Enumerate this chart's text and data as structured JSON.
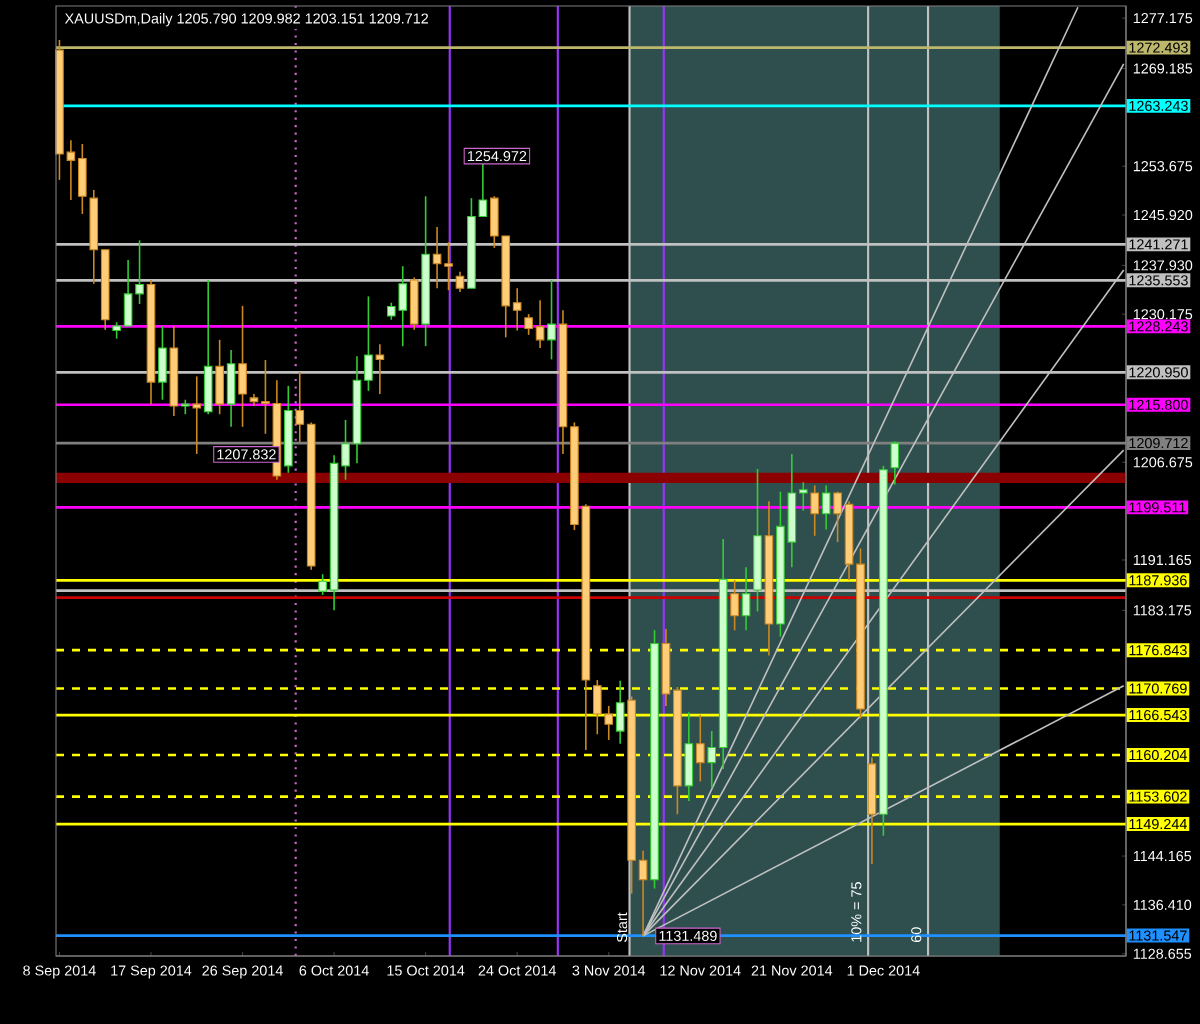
{
  "chart_data": {
    "type": "candlestick",
    "title": "XAUUSDm,Daily  1205.790 1209.982 1203.151 1209.712",
    "categories": [
      "8 Sep 2014",
      null,
      null,
      null,
      null,
      null,
      null,
      null,
      "17 Sep 2014",
      null,
      null,
      null,
      null,
      null,
      null,
      null,
      "26 Sep 2014",
      null,
      null,
      null,
      null,
      null,
      null,
      null,
      "6 Oct 2014",
      null,
      null,
      null,
      null,
      null,
      null,
      null,
      "15 Oct 2014",
      null,
      null,
      null,
      null,
      null,
      null,
      null,
      "24 Oct 2014",
      null,
      null,
      null,
      null,
      null,
      null,
      null,
      "3 Nov 2014",
      null,
      null,
      null,
      null,
      null,
      null,
      null,
      "12 Nov 2014",
      null,
      null,
      null,
      null,
      null,
      null,
      null,
      "21 Nov 2014",
      null,
      null,
      null,
      null,
      null,
      null,
      null,
      "1 Dec 2014",
      null,
      null,
      null,
      null,
      null,
      null,
      null,
      null,
      null,
      null,
      null,
      null,
      null,
      null,
      null,
      null,
      null,
      null,
      null,
      null,
      null
    ],
    "ohlc": [
      [
        1272.1,
        1273.7,
        1251.5,
        1255.6
      ],
      [
        1255.9,
        1257.8,
        1248.3,
        1254.6
      ],
      [
        1254.9,
        1257.2,
        1246.1,
        1248.9
      ],
      [
        1248.6,
        1249.9,
        1235.0,
        1240.4
      ],
      [
        1240.4,
        1240.4,
        1227.7,
        1229.3
      ],
      [
        1227.6,
        1228.9,
        1226.3,
        1228.3
      ],
      [
        1228.3,
        1238.8,
        1228.3,
        1233.4
      ],
      [
        1233.4,
        1241.9,
        1231.8,
        1234.9
      ],
      [
        1234.9,
        1235.6,
        1215.9,
        1219.4
      ],
      [
        1219.4,
        1228.3,
        1216.6,
        1224.8
      ],
      [
        1224.8,
        1228.3,
        1214.0,
        1215.6
      ],
      [
        1215.6,
        1216.6,
        1214.3,
        1215.9
      ],
      [
        1215.9,
        1220.3,
        1208.0,
        1215.3
      ],
      [
        1214.7,
        1235.6,
        1214.3,
        1221.9
      ],
      [
        1221.9,
        1226.1,
        1214.3,
        1215.9
      ],
      [
        1215.9,
        1224.5,
        1212.3,
        1222.3
      ],
      [
        1222.3,
        1231.5,
        1212.3,
        1217.5
      ],
      [
        1216.9,
        1217.5,
        1215.6,
        1216.3
      ],
      [
        1216.3,
        1222.9,
        1211.2,
        1216.0
      ],
      [
        1216.0,
        1219.7,
        1203.9,
        1204.5
      ],
      [
        1206.1,
        1218.8,
        1205.0,
        1214.9
      ],
      [
        1214.9,
        1221.0,
        1209.9,
        1212.7
      ],
      [
        1212.7,
        1213.0,
        1189.6,
        1190.2
      ],
      [
        1186.2,
        1188.9,
        1185.6,
        1187.8
      ],
      [
        1186.4,
        1207.8,
        1183.2,
        1206.5
      ],
      [
        1206.1,
        1213.4,
        1203.9,
        1209.6
      ],
      [
        1209.6,
        1223.5,
        1206.5,
        1219.7
      ],
      [
        1219.7,
        1233.0,
        1218.0,
        1223.7
      ],
      [
        1223.7,
        1225.4,
        1217.5,
        1223.0
      ],
      [
        1229.9,
        1232.0,
        1229.3,
        1231.4
      ],
      [
        1230.8,
        1237.8,
        1225.1,
        1235.0
      ],
      [
        1235.6,
        1236.0,
        1227.7,
        1228.6
      ],
      [
        1228.6,
        1248.9,
        1225.1,
        1239.7
      ],
      [
        1239.7,
        1244.0,
        1234.3,
        1238.2
      ],
      [
        1238.2,
        1241.6,
        1234.0,
        1237.8
      ],
      [
        1236.2,
        1236.9,
        1233.7,
        1234.3
      ],
      [
        1234.3,
        1248.6,
        1234.3,
        1245.7
      ],
      [
        1245.7,
        1254.972,
        1245.7,
        1248.3
      ],
      [
        1248.6,
        1248.9,
        1240.7,
        1242.6
      ],
      [
        1242.6,
        1242.6,
        1226.5,
        1231.5
      ],
      [
        1232.0,
        1234.3,
        1227.6,
        1230.8
      ],
      [
        1229.6,
        1230.2,
        1226.9,
        1227.9
      ],
      [
        1228.2,
        1232.4,
        1224.8,
        1226.1
      ],
      [
        1226.1,
        1235.6,
        1223.0,
        1228.6
      ],
      [
        1228.6,
        1230.8,
        1208.0,
        1212.3
      ],
      [
        1212.3,
        1213.0,
        1195.9,
        1196.8
      ],
      [
        1199.7,
        1200.0,
        1161.0,
        1172.1
      ],
      [
        1171.2,
        1172.1,
        1163.5,
        1166.7
      ],
      [
        1166.7,
        1168.0,
        1162.6,
        1165.1
      ],
      [
        1164.0,
        1172.0,
        1162.0,
        1168.5
      ],
      [
        1168.9,
        1169.5,
        1138.2,
        1143.5
      ],
      [
        1143.5,
        1145.0,
        1131.489,
        1140.4
      ],
      [
        1140.4,
        1180.0,
        1139.0,
        1177.9
      ],
      [
        1177.9,
        1180.2,
        1168.0,
        1169.9
      ],
      [
        1170.5,
        1171.0,
        1150.8,
        1155.3
      ],
      [
        1155.3,
        1167.0,
        1152.9,
        1162.0
      ],
      [
        1162.0,
        1166.6,
        1156.0,
        1159.0
      ],
      [
        1159.0,
        1164.0,
        1155.0,
        1161.4
      ],
      [
        1161.4,
        1194.5,
        1158.0,
        1188.1
      ],
      [
        1185.8,
        1188.0,
        1180.0,
        1182.3
      ],
      [
        1182.3,
        1190.0,
        1180.0,
        1185.8
      ],
      [
        1186.4,
        1205.6,
        1183.0,
        1195.0
      ],
      [
        1195.0,
        1200.5,
        1176.0,
        1181.0
      ],
      [
        1181.0,
        1202.0,
        1179.0,
        1196.5
      ],
      [
        1194.0,
        1208.0,
        1190.0,
        1201.8
      ],
      [
        1201.8,
        1203.5,
        1199.0,
        1202.3
      ],
      [
        1201.8,
        1203.0,
        1195.0,
        1198.5
      ],
      [
        1198.5,
        1203.0,
        1196.0,
        1201.8
      ],
      [
        1201.8,
        1202.0,
        1194.0,
        1198.5
      ],
      [
        1200.0,
        1200.5,
        1188.0,
        1190.5
      ],
      [
        1190.5,
        1193.0,
        1166.0,
        1167.5
      ],
      [
        1158.8,
        1159.8,
        1142.9,
        1150.8
      ],
      [
        1150.8,
        1206.1,
        1147.4,
        1205.5
      ],
      [
        1205.79,
        1209.982,
        1203.151,
        1209.712
      ],
      null,
      null,
      null,
      null,
      null,
      null,
      null,
      null,
      null,
      null,
      null,
      null,
      null,
      null,
      null,
      null,
      null,
      null,
      null,
      null
    ],
    "series": [
      {
        "type": "line",
        "color": "#c0c0c0",
        "values": [
          null,
          null,
          null,
          null,
          null,
          null,
          null,
          null,
          null,
          null,
          null,
          null,
          null,
          null,
          null,
          null,
          null,
          null,
          null,
          null,
          null,
          null,
          null,
          null,
          null,
          null,
          null,
          null,
          null,
          null,
          null,
          null,
          null,
          null,
          null,
          null,
          null,
          null,
          null,
          null,
          null,
          null,
          null,
          null,
          null,
          null,
          null,
          null,
          null,
          null,
          null,
          1131.5,
          null,
          null,
          null,
          null,
          null,
          null,
          null,
          null,
          null,
          null,
          null,
          null,
          null,
          null,
          null,
          null,
          null,
          null,
          null,
          null,
          null,
          null,
          null,
          null,
          null,
          null,
          null,
          null,
          null,
          null,
          null,
          null,
          null,
          null,
          null,
          null,
          null,
          1278.9,
          null,
          null,
          null,
          null
        ]
      },
      {
        "type": "line",
        "color": "#c0c0c0",
        "values": [
          null,
          null,
          null,
          null,
          null,
          null,
          null,
          null,
          null,
          null,
          null,
          null,
          null,
          null,
          null,
          null,
          null,
          null,
          null,
          null,
          null,
          null,
          null,
          null,
          null,
          null,
          null,
          null,
          null,
          null,
          null,
          null,
          null,
          null,
          null,
          null,
          null,
          null,
          null,
          null,
          null,
          null,
          null,
          null,
          null,
          null,
          null,
          null,
          null,
          null,
          null,
          1131.5,
          null,
          null,
          null,
          null,
          null,
          null,
          null,
          null,
          null,
          null,
          null,
          null,
          null,
          null,
          null,
          null,
          null,
          null,
          null,
          null,
          null,
          null,
          null,
          null,
          null,
          null,
          null,
          null,
          null,
          null,
          null,
          null,
          null,
          null,
          null,
          null,
          null,
          null,
          null,
          null,
          null,
          1269.9
        ]
      },
      {
        "type": "line",
        "color": "#c0c0c0",
        "values": [
          null,
          null,
          null,
          null,
          null,
          null,
          null,
          null,
          null,
          null,
          null,
          null,
          null,
          null,
          null,
          null,
          null,
          null,
          null,
          null,
          null,
          null,
          null,
          null,
          null,
          null,
          null,
          null,
          null,
          null,
          null,
          null,
          null,
          null,
          null,
          null,
          null,
          null,
          null,
          null,
          null,
          null,
          null,
          null,
          null,
          null,
          null,
          null,
          null,
          null,
          null,
          1131.5,
          null,
          null,
          null,
          null,
          null,
          null,
          null,
          null,
          null,
          null,
          null,
          null,
          null,
          null,
          null,
          null,
          null,
          null,
          null,
          null,
          null,
          null,
          null,
          null,
          null,
          null,
          null,
          null,
          null,
          null,
          null,
          null,
          null,
          null,
          null,
          null,
          null,
          null,
          null,
          null,
          null,
          1237.2
        ]
      },
      {
        "type": "line",
        "color": "#c0c0c0",
        "values": [
          null,
          null,
          null,
          null,
          null,
          null,
          null,
          null,
          null,
          null,
          null,
          null,
          null,
          null,
          null,
          null,
          null,
          null,
          null,
          null,
          null,
          null,
          null,
          null,
          null,
          null,
          null,
          null,
          null,
          null,
          null,
          null,
          null,
          null,
          null,
          null,
          null,
          null,
          null,
          null,
          null,
          null,
          null,
          null,
          null,
          null,
          null,
          null,
          null,
          null,
          null,
          1131.5,
          null,
          null,
          null,
          null,
          null,
          null,
          null,
          null,
          null,
          null,
          null,
          null,
          null,
          null,
          null,
          null,
          null,
          null,
          null,
          null,
          null,
          null,
          null,
          null,
          null,
          null,
          null,
          null,
          null,
          null,
          null,
          null,
          null,
          null,
          null,
          null,
          null,
          null,
          null,
          null,
          null,
          1208.6
        ]
      },
      {
        "type": "line",
        "color": "#c0c0c0",
        "values": [
          null,
          null,
          null,
          null,
          null,
          null,
          null,
          null,
          null,
          null,
          null,
          null,
          null,
          null,
          null,
          null,
          null,
          null,
          null,
          null,
          null,
          null,
          null,
          null,
          null,
          null,
          null,
          null,
          null,
          null,
          null,
          null,
          null,
          null,
          null,
          null,
          null,
          null,
          null,
          null,
          null,
          null,
          null,
          null,
          null,
          null,
          null,
          null,
          null,
          null,
          null,
          1131.5,
          null,
          null,
          null,
          null,
          null,
          null,
          null,
          null,
          null,
          null,
          null,
          null,
          null,
          null,
          null,
          null,
          null,
          null,
          null,
          null,
          null,
          null,
          null,
          null,
          null,
          null,
          null,
          null,
          null,
          null,
          null,
          null,
          null,
          null,
          null,
          null,
          null,
          null,
          null,
          null,
          null,
          1171.2
        ]
      }
    ],
    "ylim": [
      1128.3,
      1279.1
    ],
    "yticks": [
      {
        "value": 1277.175,
        "label": "1277.175"
      },
      {
        "value": 1269.185,
        "label": "1269.185"
      },
      {
        "value": 1253.675,
        "label": "1253.675"
      },
      {
        "value": 1245.92,
        "label": "1245.920"
      },
      {
        "value": 1237.93,
        "label": "1237.930"
      },
      {
        "value": 1230.175,
        "label": "1230.175"
      },
      {
        "value": 1206.675,
        "label": "1206.675"
      },
      {
        "value": 1191.165,
        "label": "1191.165"
      },
      {
        "value": 1183.175,
        "label": "1183.175"
      },
      {
        "value": 1144.165,
        "label": "1144.165"
      },
      {
        "value": 1136.41,
        "label": "1136.410"
      },
      {
        "value": 1128.655,
        "label": "1128.655"
      }
    ],
    "ref_lines": [
      {
        "axis": "y",
        "value": 1272.493,
        "label": "1272.493",
        "color": "#bdb76b"
      },
      {
        "axis": "y",
        "value": 1263.243,
        "label": "1263.243",
        "color": "#00ffff"
      },
      {
        "axis": "y",
        "value": 1241.271,
        "label": "1241.271",
        "color": "#c0c0c0"
      },
      {
        "axis": "y",
        "value": 1235.553,
        "label": "1235.553",
        "color": "#c0c0c0"
      },
      {
        "axis": "y",
        "value": 1228.243,
        "label": "1228.243",
        "color": "#ff00ff"
      },
      {
        "axis": "y",
        "value": 1220.95,
        "label": "1220.950",
        "color": "#c0c0c0"
      },
      {
        "axis": "y",
        "value": 1215.8,
        "label": "1215.800",
        "color": "#ff00ff"
      },
      {
        "axis": "y",
        "value": 1209.712,
        "label": "1209.712",
        "color": "#808080"
      },
      {
        "axis": "y",
        "value": 1199.511,
        "label": "1199.511",
        "color": "#ff00ff"
      },
      {
        "axis": "y",
        "value": 1187.936,
        "label": "1187.936",
        "color": "#ffff00"
      },
      {
        "axis": "y",
        "value": 1186.3,
        "color": "#c0c0c0"
      },
      {
        "axis": "y",
        "value": 1185.2,
        "color": "#cc0000"
      },
      {
        "axis": "y",
        "value": 1176.843,
        "label": "1176.843",
        "color": "#ffff00",
        "line_style": "dashed"
      },
      {
        "axis": "y",
        "value": 1170.769,
        "label": "1170.769",
        "color": "#ffff00",
        "line_style": "dashed"
      },
      {
        "axis": "y",
        "value": 1166.543,
        "label": "1166.543",
        "color": "#ffff00"
      },
      {
        "axis": "y",
        "value": 1160.204,
        "label": "1160.204",
        "color": "#ffff00",
        "line_style": "dashed"
      },
      {
        "axis": "y",
        "value": 1153.602,
        "label": "1153.602",
        "color": "#ffff00",
        "line_style": "dashed"
      },
      {
        "axis": "y",
        "value": 1149.244,
        "label": "1149.244",
        "color": "#ffff00"
      },
      {
        "axis": "y",
        "value": 1131.547,
        "label": "1131.547",
        "color": "#1e90ff"
      }
    ],
    "bands": [
      {
        "axis": "y",
        "from": 1203.4,
        "to": 1205.0,
        "color": "#8b0000"
      }
    ],
    "annotations": [
      "1207.832",
      "1254.972",
      {
        "text": "1131.489",
        "y": 1131.489
      },
      "Start",
      "10% = 75",
      "60"
    ]
  }
}
